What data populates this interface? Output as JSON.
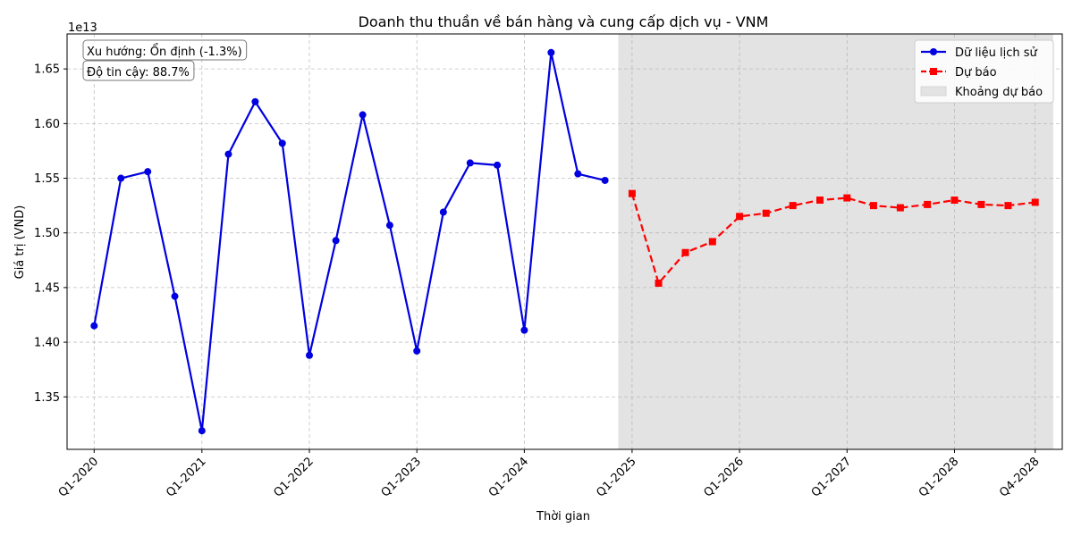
{
  "chart_data": {
    "type": "line",
    "title": "Doanh thu thuần về bán hàng và cung cấp dịch vụ - VNM",
    "xlabel": "Thời gian",
    "ylabel": "Giá trị (VND)",
    "y_offset_label": "1e13",
    "y_unit_multiplier": 10000000000000.0,
    "ylim": [
      1.302,
      1.682
    ],
    "yticks": [
      1.35,
      1.4,
      1.45,
      1.5,
      1.55,
      1.6,
      1.65
    ],
    "ytick_labels": [
      "1.35",
      "1.40",
      "1.45",
      "1.50",
      "1.55",
      "1.60",
      "1.65"
    ],
    "xticks": [
      "Q1-2020",
      "Q1-2021",
      "Q1-2022",
      "Q1-2023",
      "Q1-2024",
      "Q1-2025",
      "Q1-2026",
      "Q1-2027",
      "Q1-2028",
      "Q4-2028"
    ],
    "xlim": [
      "2019-10-01",
      "2029-01-01"
    ],
    "grid": true,
    "legend_position": "top-right",
    "annotations": [
      "Xu hướng: Ổn định (-1.3%)",
      "Độ tin cậy: 88.7%"
    ],
    "forecast_band": {
      "name": "Khoảng dự báo",
      "x_start": "2024-11-15",
      "x_end": "2028-12-01",
      "color": "#e3e3e3"
    },
    "series": [
      {
        "name": "Dữ liệu lịch sử",
        "color": "#0000e0",
        "style": "solid",
        "marker": "circle",
        "x": [
          "Q1-2020",
          "Q2-2020",
          "Q3-2020",
          "Q4-2020",
          "Q1-2021",
          "Q2-2021",
          "Q3-2021",
          "Q4-2021",
          "Q1-2022",
          "Q2-2022",
          "Q3-2022",
          "Q4-2022",
          "Q1-2023",
          "Q2-2023",
          "Q3-2023",
          "Q4-2023",
          "Q1-2024",
          "Q2-2024",
          "Q3-2024",
          "Q4-2024"
        ],
        "values": [
          1.415,
          1.55,
          1.556,
          1.442,
          1.319,
          1.572,
          1.62,
          1.582,
          1.388,
          1.493,
          1.608,
          1.507,
          1.392,
          1.519,
          1.564,
          1.562,
          1.411,
          1.665,
          1.554,
          1.548
        ]
      },
      {
        "name": "Dự báo",
        "color": "#ff0000",
        "style": "dashed",
        "marker": "square",
        "x": [
          "Q1-2025",
          "Q2-2025",
          "Q3-2025",
          "Q4-2025",
          "Q1-2026",
          "Q2-2026",
          "Q3-2026",
          "Q4-2026",
          "Q1-2027",
          "Q2-2027",
          "Q3-2027",
          "Q4-2027",
          "Q1-2028",
          "Q2-2028",
          "Q3-2028",
          "Q4-2028"
        ],
        "values": [
          1.536,
          1.454,
          1.482,
          1.492,
          1.515,
          1.518,
          1.525,
          1.53,
          1.532,
          1.525,
          1.523,
          1.526,
          1.53,
          1.526,
          1.525,
          1.528
        ]
      }
    ]
  }
}
